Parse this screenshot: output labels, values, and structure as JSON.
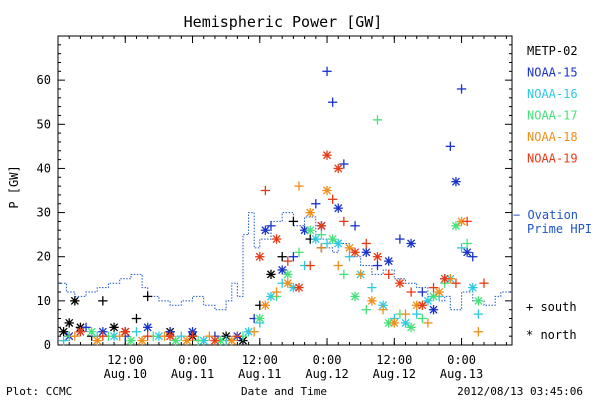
{
  "chart_data": {
    "type": "scatter",
    "title": "Hemispheric Power [GW]",
    "ylabel": "P [GW]",
    "xlabel": "Date and Time",
    "footer_left": "Plot: CCMC",
    "footer_right": "2012/08/13 03:45:06",
    "ylim": [
      0,
      70
    ],
    "yticks": [
      0,
      10,
      20,
      30,
      40,
      50,
      60
    ],
    "xlim_hours": [
      0,
      81
    ],
    "xticks": [
      {
        "hour": 12,
        "time": "12:00",
        "date": "Aug.10"
      },
      {
        "hour": 24,
        "time": "0:00",
        "date": "Aug.11"
      },
      {
        "hour": 36,
        "time": "12:00",
        "date": "Aug.11"
      },
      {
        "hour": 48,
        "time": "0:00",
        "date": "Aug.12"
      },
      {
        "hour": 60,
        "time": "12:00",
        "date": "Aug.12"
      },
      {
        "hour": 72,
        "time": "0:00",
        "date": "Aug.13"
      }
    ],
    "grid": false,
    "legend_position": "right",
    "series": [
      {
        "name": "METP-02",
        "color": "#000000",
        "points": [
          [
            1,
            3,
            "n"
          ],
          [
            2,
            5,
            "n"
          ],
          [
            3,
            10,
            "n"
          ],
          [
            4,
            4,
            "n"
          ],
          [
            6,
            2,
            "s"
          ],
          [
            8,
            10,
            "s"
          ],
          [
            10,
            4,
            "n"
          ],
          [
            12,
            3,
            "n"
          ],
          [
            14,
            6,
            "s"
          ],
          [
            16,
            11,
            "s"
          ],
          [
            20,
            3,
            "n"
          ],
          [
            24,
            2,
            "n"
          ],
          [
            30,
            2,
            "n"
          ],
          [
            33,
            1,
            "n"
          ],
          [
            36,
            9,
            "s"
          ],
          [
            38,
            16,
            "n"
          ],
          [
            40,
            20,
            "s"
          ],
          [
            42,
            28,
            "s"
          ],
          [
            45,
            24,
            "s"
          ],
          [
            47,
            22,
            "s"
          ]
        ]
      },
      {
        "name": "NOAA-15",
        "color": "#1833c8",
        "points": [
          [
            2,
            2,
            "n"
          ],
          [
            5,
            4,
            "s"
          ],
          [
            8,
            3,
            "n"
          ],
          [
            12,
            2,
            "s"
          ],
          [
            16,
            4,
            "n"
          ],
          [
            20,
            3,
            "s"
          ],
          [
            24,
            3,
            "n"
          ],
          [
            28,
            2,
            "s"
          ],
          [
            32,
            2,
            "n"
          ],
          [
            35,
            6,
            "s"
          ],
          [
            37,
            26,
            "n"
          ],
          [
            38,
            27,
            "s"
          ],
          [
            40,
            17,
            "n"
          ],
          [
            42,
            20,
            "s"
          ],
          [
            44,
            26,
            "n"
          ],
          [
            46,
            32,
            "s"
          ],
          [
            47,
            27,
            "n"
          ],
          [
            48,
            62,
            "s"
          ],
          [
            49,
            55,
            "s"
          ],
          [
            50,
            31,
            "n"
          ],
          [
            51,
            41,
            "s"
          ],
          [
            53,
            27,
            "s"
          ],
          [
            55,
            21,
            "n"
          ],
          [
            57,
            18,
            "s"
          ],
          [
            59,
            19,
            "n"
          ],
          [
            61,
            24,
            "s"
          ],
          [
            63,
            23,
            "n"
          ],
          [
            65,
            12,
            "s"
          ],
          [
            67,
            8,
            "n"
          ],
          [
            69,
            15,
            "s"
          ],
          [
            70,
            45,
            "s"
          ],
          [
            71,
            37,
            "n"
          ],
          [
            72,
            58,
            "s"
          ],
          [
            73,
            21,
            "n"
          ],
          [
            74,
            20,
            "s"
          ]
        ]
      },
      {
        "name": "NOAA-16",
        "color": "#2ec8e0",
        "points": [
          [
            1,
            1,
            "s"
          ],
          [
            4,
            3,
            "n"
          ],
          [
            7,
            2,
            "s"
          ],
          [
            10,
            2,
            "n"
          ],
          [
            14,
            3,
            "s"
          ],
          [
            18,
            2,
            "n"
          ],
          [
            22,
            2,
            "s"
          ],
          [
            26,
            1,
            "n"
          ],
          [
            30,
            1,
            "s"
          ],
          [
            34,
            3,
            "n"
          ],
          [
            36,
            5,
            "s"
          ],
          [
            38,
            11,
            "n"
          ],
          [
            40,
            14,
            "s"
          ],
          [
            42,
            13,
            "n"
          ],
          [
            44,
            18,
            "s"
          ],
          [
            46,
            24,
            "n"
          ],
          [
            48,
            23,
            "s"
          ],
          [
            50,
            23,
            "n"
          ],
          [
            52,
            20,
            "s"
          ],
          [
            54,
            16,
            "n"
          ],
          [
            56,
            13,
            "s"
          ],
          [
            58,
            9,
            "n"
          ],
          [
            60,
            6,
            "s"
          ],
          [
            62,
            5,
            "n"
          ],
          [
            64,
            7,
            "s"
          ],
          [
            66,
            10,
            "n"
          ],
          [
            68,
            11,
            "s"
          ],
          [
            70,
            15,
            "n"
          ],
          [
            72,
            22,
            "s"
          ],
          [
            74,
            13,
            "n"
          ],
          [
            75,
            7,
            "s"
          ]
        ]
      },
      {
        "name": "NOAA-17",
        "color": "#44e27a",
        "points": [
          [
            2,
            2,
            "s"
          ],
          [
            6,
            3,
            "n"
          ],
          [
            9,
            2,
            "s"
          ],
          [
            13,
            1,
            "n"
          ],
          [
            17,
            2,
            "s"
          ],
          [
            21,
            1,
            "n"
          ],
          [
            25,
            1,
            "s"
          ],
          [
            29,
            1,
            "n"
          ],
          [
            33,
            2,
            "s"
          ],
          [
            36,
            6,
            "n"
          ],
          [
            39,
            11,
            "s"
          ],
          [
            41,
            16,
            "n"
          ],
          [
            43,
            21,
            "s"
          ],
          [
            45,
            26,
            "n"
          ],
          [
            47,
            25,
            "s"
          ],
          [
            49,
            24,
            "n"
          ],
          [
            51,
            16,
            "s"
          ],
          [
            53,
            11,
            "n"
          ],
          [
            55,
            8,
            "s"
          ],
          [
            57,
            51,
            "s"
          ],
          [
            59,
            5,
            "n"
          ],
          [
            61,
            7,
            "s"
          ],
          [
            63,
            4,
            "n"
          ],
          [
            65,
            6,
            "s"
          ],
          [
            67,
            11,
            "n"
          ],
          [
            69,
            14,
            "s"
          ],
          [
            71,
            27,
            "n"
          ],
          [
            73,
            23,
            "s"
          ],
          [
            75,
            10,
            "n"
          ]
        ]
      },
      {
        "name": "NOAA-18",
        "color": "#ef8e19",
        "points": [
          [
            3,
            2,
            "s"
          ],
          [
            7,
            1,
            "n"
          ],
          [
            11,
            2,
            "s"
          ],
          [
            15,
            1,
            "n"
          ],
          [
            19,
            2,
            "s"
          ],
          [
            23,
            1,
            "n"
          ],
          [
            27,
            2,
            "s"
          ],
          [
            31,
            1,
            "n"
          ],
          [
            35,
            3,
            "s"
          ],
          [
            37,
            9,
            "n"
          ],
          [
            39,
            12,
            "s"
          ],
          [
            41,
            14,
            "n"
          ],
          [
            43,
            36,
            "s"
          ],
          [
            45,
            30,
            "n"
          ],
          [
            47,
            22,
            "s"
          ],
          [
            48,
            35,
            "n"
          ],
          [
            50,
            18,
            "s"
          ],
          [
            52,
            22,
            "n"
          ],
          [
            54,
            16,
            "s"
          ],
          [
            56,
            10,
            "n"
          ],
          [
            58,
            8,
            "s"
          ],
          [
            60,
            5,
            "n"
          ],
          [
            62,
            7,
            "s"
          ],
          [
            64,
            9,
            "n"
          ],
          [
            66,
            5,
            "s"
          ],
          [
            68,
            12,
            "n"
          ],
          [
            70,
            15,
            "s"
          ],
          [
            72,
            28,
            "n"
          ],
          [
            75,
            3,
            "s"
          ]
        ]
      },
      {
        "name": "NOAA-19",
        "color": "#e83a14",
        "points": [
          [
            4,
            3,
            "n"
          ],
          [
            8,
            2,
            "s"
          ],
          [
            12,
            3,
            "n"
          ],
          [
            16,
            2,
            "s"
          ],
          [
            20,
            2,
            "n"
          ],
          [
            24,
            2,
            "s"
          ],
          [
            28,
            1,
            "n"
          ],
          [
            32,
            2,
            "s"
          ],
          [
            36,
            20,
            "n"
          ],
          [
            37,
            35,
            "s"
          ],
          [
            39,
            24,
            "n"
          ],
          [
            41,
            19,
            "s"
          ],
          [
            43,
            13,
            "n"
          ],
          [
            45,
            18,
            "s"
          ],
          [
            47,
            27,
            "n"
          ],
          [
            48,
            43,
            "n"
          ],
          [
            49,
            33,
            "s"
          ],
          [
            50,
            40,
            "n"
          ],
          [
            51,
            28,
            "s"
          ],
          [
            53,
            21,
            "n"
          ],
          [
            55,
            23,
            "s"
          ],
          [
            57,
            20,
            "n"
          ],
          [
            59,
            16,
            "s"
          ],
          [
            61,
            14,
            "n"
          ],
          [
            63,
            12,
            "s"
          ],
          [
            65,
            9,
            "n"
          ],
          [
            67,
            13,
            "s"
          ],
          [
            69,
            15,
            "n"
          ],
          [
            71,
            14,
            "s"
          ],
          [
            73,
            28,
            "s"
          ],
          [
            76,
            14,
            "s"
          ]
        ]
      }
    ],
    "ovation": {
      "name": "Ovation Prime HPI",
      "legend_text": "Ovation Prime HPI",
      "legend_lines": [
        "Ovation",
        "Prime HPI"
      ],
      "color": "#1f55c7",
      "steps": [
        [
          0,
          14
        ],
        [
          1.5,
          12
        ],
        [
          3,
          11
        ],
        [
          5,
          12
        ],
        [
          7,
          13
        ],
        [
          9,
          14
        ],
        [
          11,
          15
        ],
        [
          13,
          16
        ],
        [
          15,
          13
        ],
        [
          16,
          11
        ],
        [
          18,
          10
        ],
        [
          20,
          9
        ],
        [
          22,
          10
        ],
        [
          24,
          11
        ],
        [
          26,
          9
        ],
        [
          28,
          8
        ],
        [
          30,
          10
        ],
        [
          31,
          14
        ],
        [
          32,
          11
        ],
        [
          33,
          25
        ],
        [
          34,
          30
        ],
        [
          35,
          22
        ],
        [
          36,
          24
        ],
        [
          38,
          28
        ],
        [
          40,
          30
        ],
        [
          42,
          27
        ],
        [
          44,
          29
        ],
        [
          46,
          24
        ],
        [
          48,
          22
        ],
        [
          49,
          21
        ],
        [
          50,
          23
        ],
        [
          52,
          20
        ],
        [
          54,
          18
        ],
        [
          56,
          16
        ],
        [
          58,
          17
        ],
        [
          60,
          15
        ],
        [
          62,
          14
        ],
        [
          64,
          13
        ],
        [
          66,
          11
        ],
        [
          68,
          10
        ],
        [
          69,
          11
        ],
        [
          70,
          8
        ],
        [
          72,
          12
        ],
        [
          74,
          10
        ],
        [
          76,
          9
        ],
        [
          78,
          11
        ],
        [
          79,
          12
        ],
        [
          81,
          12
        ]
      ]
    },
    "marker_legend": [
      {
        "symbol": "+",
        "text": "south"
      },
      {
        "symbol": "*",
        "text": "north"
      }
    ]
  }
}
